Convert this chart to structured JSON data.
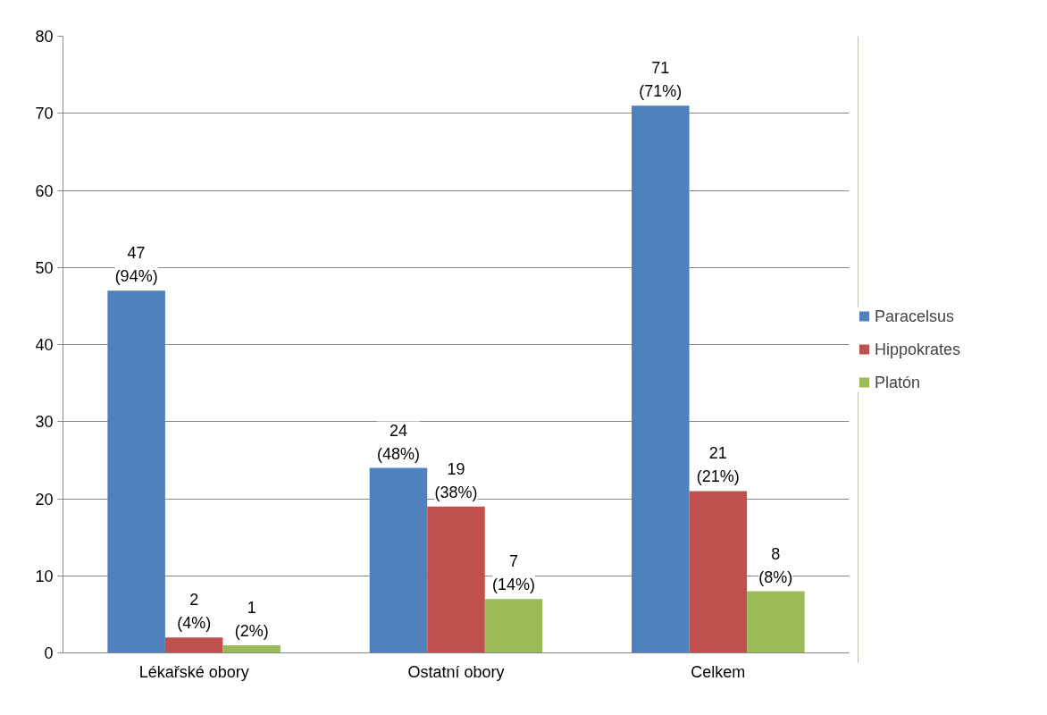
{
  "chart_data": {
    "type": "bar",
    "categories": [
      "Lékařské obory",
      "Ostatní obory",
      "Celkem"
    ],
    "series": [
      {
        "name": "Paracelsus",
        "color": "#4f81bd",
        "values": [
          47,
          24,
          71
        ],
        "value_labels": [
          "47\n(94%)",
          "24\n(48%)",
          "71\n(71%)"
        ]
      },
      {
        "name": "Hippokrates",
        "color": "#c0504d",
        "values": [
          2,
          19,
          21
        ],
        "value_labels": [
          "2\n(4%)",
          "19\n(38%)",
          "21\n(21%)"
        ]
      },
      {
        "name": "Platón",
        "color": "#9bbb59",
        "values": [
          1,
          7,
          8
        ],
        "value_labels": [
          "1\n(2%)",
          "7\n(14%)",
          "8\n(8%)"
        ]
      }
    ],
    "ylim": [
      0,
      80
    ],
    "yticks": [
      0,
      10,
      20,
      30,
      40,
      50,
      60,
      70,
      80
    ],
    "grid": "y",
    "legend": "right"
  }
}
